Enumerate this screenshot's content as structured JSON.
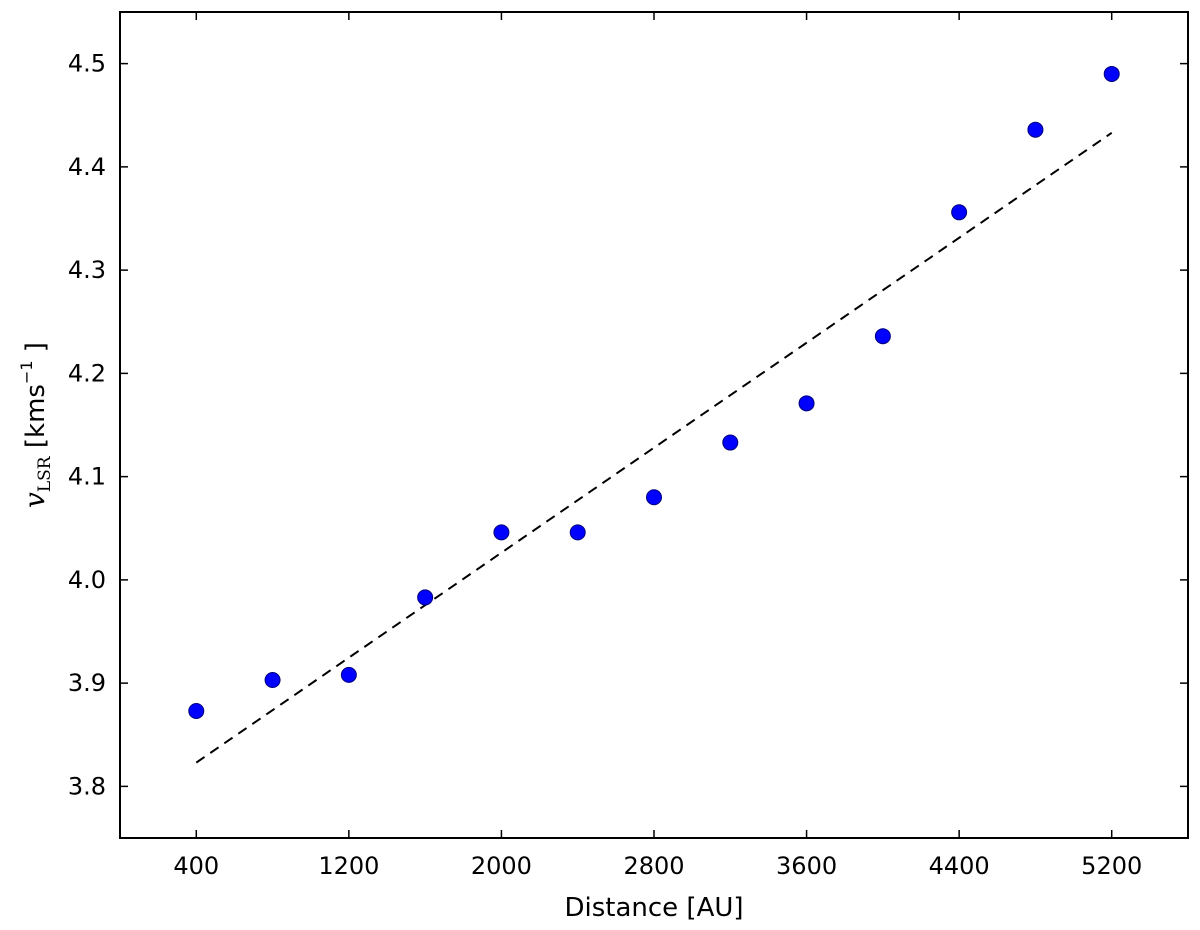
{
  "chart_data": {
    "type": "scatter",
    "title": "",
    "xlabel": "Distance [AU]",
    "ylabel": {
      "symbol": "v",
      "subscript": "LSR",
      "unit_open": " [kms",
      "unit_exponent": "−1",
      "unit_close": " ]"
    },
    "xlim": [
      0,
      5600
    ],
    "ylim": [
      3.75,
      4.55
    ],
    "xticks": [
      400,
      1200,
      2000,
      2800,
      3600,
      4400,
      5200
    ],
    "xtick_labels": [
      "400",
      "1200",
      "2000",
      "2800",
      "3600",
      "4400",
      "5200"
    ],
    "yticks": [
      3.8,
      3.9,
      4.0,
      4.1,
      4.2,
      4.3,
      4.4,
      4.5
    ],
    "ytick_labels": [
      "3.8",
      "3.9",
      "4.0",
      "4.1",
      "4.2",
      "4.3",
      "4.4",
      "4.5"
    ],
    "grid": false,
    "point_color": "#0000ff",
    "fit_color": "#000000",
    "series": [
      {
        "type": "scatter",
        "x": [
          400,
          800,
          1200,
          1600,
          2000,
          2400,
          2800,
          3200,
          3600,
          4000,
          4400,
          4800,
          5200
        ],
        "y": [
          3.873,
          3.903,
          3.908,
          3.983,
          4.046,
          4.046,
          4.08,
          4.133,
          4.171,
          4.236,
          4.356,
          4.436,
          4.49
        ]
      },
      {
        "type": "line",
        "style": "dashed",
        "x": [
          400,
          5200
        ],
        "y": [
          3.823,
          4.433
        ]
      }
    ]
  }
}
